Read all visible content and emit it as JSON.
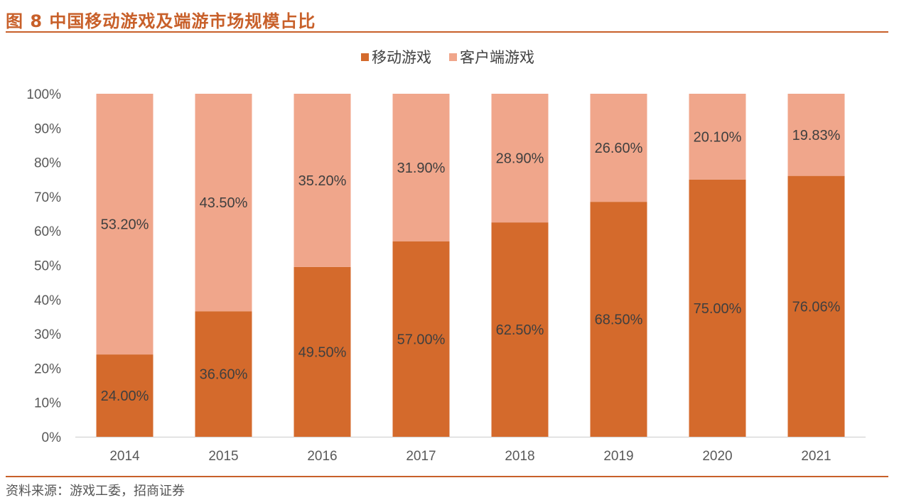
{
  "figure": {
    "title": "图 8  中国移动游戏及端游市场规模占比",
    "source": "资料来源：游戏工委，招商证券"
  },
  "colors": {
    "accent": "#c8602a",
    "mobile": "#d46a2c",
    "client": "#f0a68b",
    "grid": "#d9d9d9"
  },
  "chart_data": {
    "type": "bar",
    "stacked": true,
    "categories": [
      "2014",
      "2015",
      "2016",
      "2017",
      "2018",
      "2019",
      "2020",
      "2021"
    ],
    "series": [
      {
        "name": "移动游戏",
        "values": [
          24.0,
          36.6,
          49.5,
          57.0,
          62.5,
          68.5,
          75.0,
          76.06
        ],
        "labels": [
          "24.00%",
          "36.60%",
          "49.50%",
          "57.00%",
          "62.50%",
          "68.50%",
          "75.00%",
          "76.06%"
        ]
      },
      {
        "name": "客户端游戏",
        "values": [
          53.2,
          43.5,
          35.2,
          31.9,
          28.9,
          26.6,
          20.1,
          19.83
        ],
        "labels": [
          "53.20%",
          "43.50%",
          "35.20%",
          "31.90%",
          "28.90%",
          "26.60%",
          "20.10%",
          "19.83%"
        ]
      }
    ],
    "y_ticks": [
      "0%",
      "10%",
      "20%",
      "30%",
      "40%",
      "50%",
      "60%",
      "70%",
      "80%",
      "90%",
      "100%"
    ],
    "ylim": [
      0,
      100
    ],
    "legend_position": "top-center",
    "grid": false
  }
}
